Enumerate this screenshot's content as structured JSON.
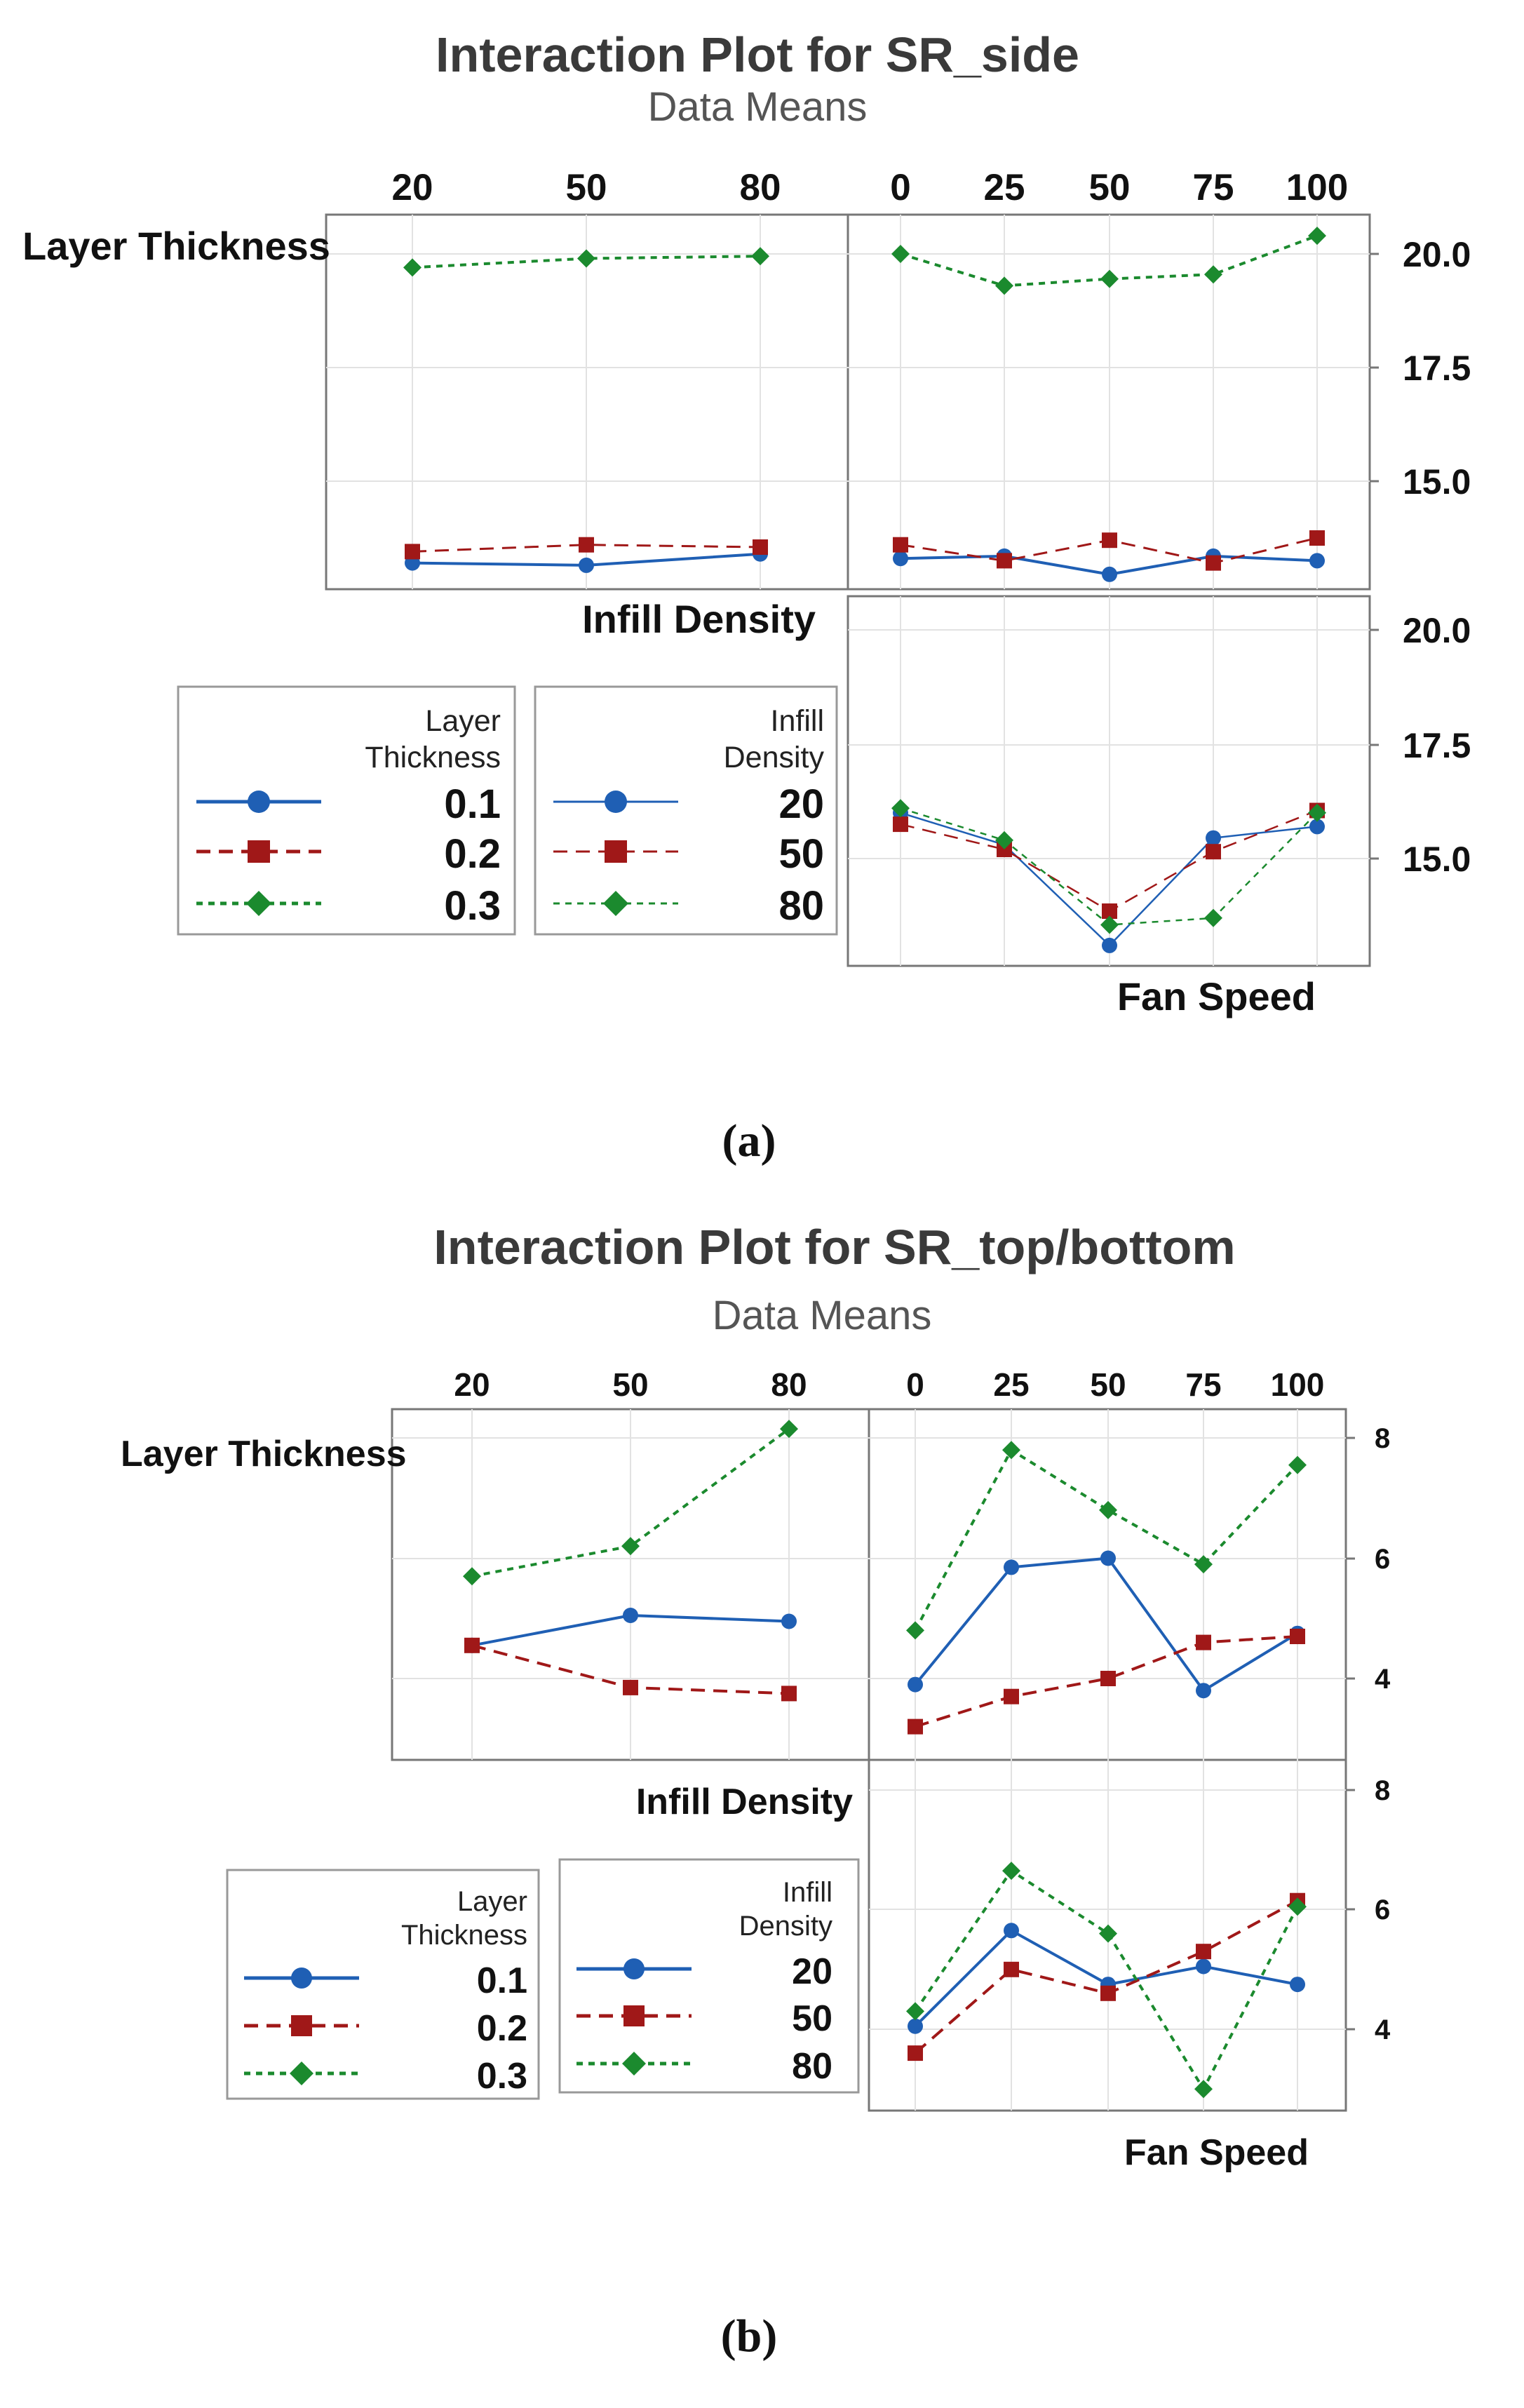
{
  "colors": {
    "c0": "#1f5fb4",
    "c1": "#a01818",
    "c2": "#1b8a2e"
  },
  "chart_data": [
    {
      "type": "line",
      "title": "Interaction Plot for SR_side",
      "subtitle": "Data Means",
      "caption": "(a)",
      "factors": {
        "lt": "Layer Thickness",
        "id": "Infill Density",
        "fs": "Fan Speed"
      },
      "id_ticks": [
        "20",
        "50",
        "80"
      ],
      "fs_ticks": [
        "0",
        "25",
        "50",
        "75",
        "100"
      ],
      "yticks": [
        "20.0",
        "17.5",
        "15.0"
      ],
      "ylim": [
        12.7,
        20.8
      ],
      "panels": {
        "lt_by_id": {
          "x": [
            20,
            50,
            80
          ],
          "series": [
            {
              "name": "0.1",
              "values": [
                13.2,
                13.15,
                13.4
              ]
            },
            {
              "name": "0.2",
              "values": [
                13.45,
                13.6,
                13.55
              ]
            },
            {
              "name": "0.3",
              "values": [
                19.7,
                19.9,
                19.95
              ]
            }
          ]
        },
        "lt_by_fs": {
          "x": [
            0,
            25,
            50,
            75,
            100
          ],
          "series": [
            {
              "name": "0.1",
              "values": [
                13.3,
                13.35,
                12.95,
                13.35,
                13.25
              ]
            },
            {
              "name": "0.2",
              "values": [
                13.6,
                13.25,
                13.7,
                13.2,
                13.75
              ]
            },
            {
              "name": "0.3",
              "values": [
                20.0,
                19.3,
                19.45,
                19.55,
                20.4
              ]
            }
          ]
        },
        "id_by_fs": {
          "x": [
            0,
            25,
            50,
            75,
            100
          ],
          "series": [
            {
              "name": "20",
              "values": [
                16.0,
                15.3,
                13.1,
                15.45,
                15.7
              ]
            },
            {
              "name": "50",
              "values": [
                15.75,
                15.2,
                13.85,
                15.15,
                16.05
              ]
            },
            {
              "name": "80",
              "values": [
                16.1,
                15.4,
                13.55,
                13.7,
                16.0
              ]
            }
          ]
        }
      },
      "legends": [
        {
          "title": [
            "Layer",
            "Thickness"
          ],
          "items": [
            "0.1",
            "0.2",
            "0.3"
          ]
        },
        {
          "title": [
            "Infill",
            "Density"
          ],
          "items": [
            "20",
            "50",
            "80"
          ]
        }
      ]
    },
    {
      "type": "line",
      "title": "Interaction Plot for SR_top/bottom",
      "subtitle": "Data Means",
      "caption": "(b)",
      "factors": {
        "lt": "Layer Thickness",
        "id": "Infill Density",
        "fs": "Fan Speed"
      },
      "id_ticks": [
        "20",
        "50",
        "80"
      ],
      "fs_ticks": [
        "0",
        "25",
        "50",
        "75",
        "100"
      ],
      "yticks": [
        "8",
        "6",
        "4"
      ],
      "ylim": [
        2.7,
        8.4
      ],
      "panels": {
        "lt_by_id": {
          "x": [
            20,
            50,
            80
          ],
          "series": [
            {
              "name": "0.1",
              "values": [
                4.55,
                5.05,
                4.95
              ]
            },
            {
              "name": "0.2",
              "values": [
                4.55,
                3.85,
                3.75
              ]
            },
            {
              "name": "0.3",
              "values": [
                5.7,
                6.2,
                8.15
              ]
            }
          ]
        },
        "lt_by_fs": {
          "x": [
            0,
            25,
            50,
            75,
            100
          ],
          "series": [
            {
              "name": "0.1",
              "values": [
                3.9,
                5.85,
                6.0,
                3.8,
                4.75
              ]
            },
            {
              "name": "0.2",
              "values": [
                3.2,
                3.7,
                4.0,
                4.6,
                4.7
              ]
            },
            {
              "name": "0.3",
              "values": [
                4.8,
                7.8,
                6.8,
                5.9,
                7.55
              ]
            }
          ]
        },
        "id_by_fs": {
          "x": [
            0,
            25,
            50,
            75,
            100
          ],
          "series": [
            {
              "name": "20",
              "values": [
                4.05,
                5.65,
                4.75,
                5.05,
                4.75
              ]
            },
            {
              "name": "50",
              "values": [
                3.6,
                5.0,
                4.6,
                5.3,
                6.15
              ]
            },
            {
              "name": "80",
              "values": [
                4.3,
                6.65,
                5.6,
                3.0,
                6.05
              ]
            }
          ]
        }
      },
      "legends": [
        {
          "title": [
            "Layer",
            "Thickness"
          ],
          "items": [
            "0.1",
            "0.2",
            "0.3"
          ]
        },
        {
          "title": [
            "Infill",
            "Density"
          ],
          "items": [
            "20",
            "50",
            "80"
          ]
        }
      ]
    }
  ]
}
